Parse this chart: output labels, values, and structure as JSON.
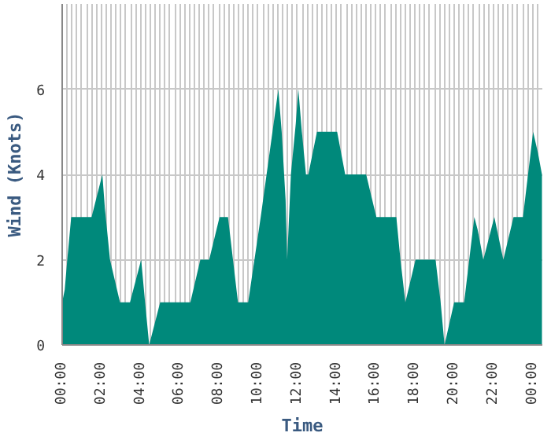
{
  "chart_data": {
    "type": "area",
    "xlabel": "Time",
    "ylabel": "Wind (Knots)",
    "color": "#00897b",
    "x": [
      0,
      0.13,
      0.26,
      0.46,
      1.5,
      2.05,
      2.18,
      2.44,
      2.95,
      3.46,
      4.03,
      4.23,
      4.44,
      5.0,
      6.54,
      7.05,
      7.5,
      8.03,
      8.46,
      8.97,
      9.49,
      10.13,
      11.03,
      11.2,
      11.4,
      11.48,
      11.67,
      11.92,
      12.05,
      12.23,
      12.44,
      12.56,
      13.0,
      14.03,
      14.44,
      15.51,
      16.03,
      17.05,
      17.26,
      17.51,
      18.03,
      19.05,
      19.31,
      19.51,
      20.0,
      20.51,
      21.03,
      21.2,
      21.49,
      22.05,
      22.51,
      23.03,
      23.51,
      24.03,
      24.28,
      24.48
    ],
    "values": [
      1,
      1.3,
      2,
      3,
      3,
      4,
      3.2,
      2,
      1,
      1,
      2,
      1,
      0,
      1,
      1,
      2,
      2,
      3,
      3,
      1,
      1,
      3,
      6,
      5,
      3.4,
      2,
      4,
      5.2,
      6,
      5,
      4,
      4,
      5,
      5,
      4,
      4,
      3,
      3,
      2,
      1,
      2,
      2,
      1,
      0,
      1,
      1,
      3,
      2.7,
      2,
      3,
      2,
      3,
      3,
      5,
      4.5,
      4
    ],
    "xlim": [
      0,
      24.5
    ],
    "ylim": [
      0,
      8
    ],
    "yticks": [
      0,
      2,
      4,
      6
    ],
    "xticks": [
      {
        "value": 0,
        "label": "00:00"
      },
      {
        "value": 2,
        "label": "02:00"
      },
      {
        "value": 4,
        "label": "04:00"
      },
      {
        "value": 6,
        "label": "06:00"
      },
      {
        "value": 8,
        "label": "08:00"
      },
      {
        "value": 10,
        "label": "10:00"
      },
      {
        "value": 12,
        "label": "12:00"
      },
      {
        "value": 14,
        "label": "14:00"
      },
      {
        "value": 16,
        "label": "16:00"
      },
      {
        "value": 18,
        "label": "18:00"
      },
      {
        "value": 20,
        "label": "20:00"
      },
      {
        "value": 22,
        "label": "22:00"
      },
      {
        "value": 24,
        "label": "00:00"
      }
    ],
    "grid": true
  }
}
